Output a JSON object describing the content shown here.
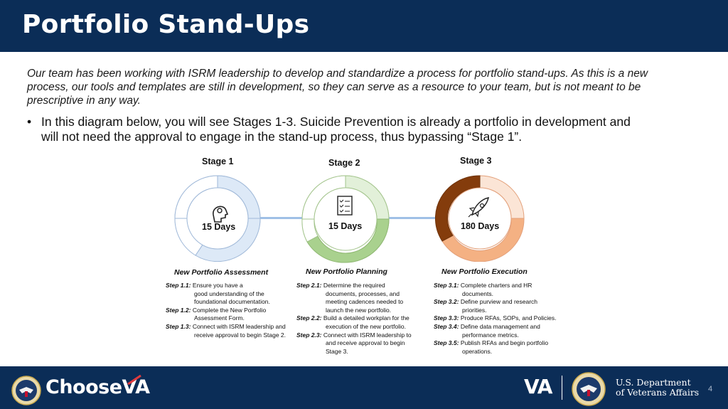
{
  "header": {
    "title": "Portfolio Stand-Ups"
  },
  "intro": "Our team has been working with ISRM leadership to develop and standardize a process for portfolio stand-ups. As this is a new process, our tools and templates are still in development, so they can serve as a resource to your team, but is not meant to be prescriptive in any way.",
  "bullet": "In this diagram below, you will see Stages 1-3. Suicide Prevention is already a portfolio in development and will not need the approval to engage in the stand-up process, thus bypassing “Stage 1”.",
  "stages": [
    {
      "label": "Stage 1",
      "days": "15 Days",
      "phase": "New Portfolio Assessment",
      "icon": "head-lightbulb-icon",
      "color": "#bcd4ee",
      "steps": [
        {
          "key": "Step 1.1:",
          "lines": [
            "Ensure you have a",
            "good understanding of the",
            "foundational documentation."
          ]
        },
        {
          "key": "Step 1.2:",
          "lines": [
            "Complete the New Portfolio",
            "Assessment Form."
          ]
        },
        {
          "key": "Step 1.3:",
          "lines": [
            "Connect with ISRM leadership and",
            "receive approval to begin Stage 2."
          ]
        }
      ]
    },
    {
      "label": "Stage 2",
      "days": "15 Days",
      "phase": "New Portfolio Planning",
      "icon": "checklist-icon",
      "color": "#a9d18e",
      "steps": [
        {
          "key": "Step 2.1:",
          "lines": [
            "Determine the required",
            "documents, processes, and",
            "meeting cadences needed to",
            "launch the new portfolio."
          ]
        },
        {
          "key": "Step 2.2:",
          "lines": [
            "Build a detailed workplan for the",
            "execution of the new portfolio."
          ]
        },
        {
          "key": "Step 2.3:",
          "lines": [
            "Connect with ISRM leadership to",
            "and receive approval to begin",
            "Stage 3."
          ]
        }
      ]
    },
    {
      "label": "Stage 3",
      "days": "180 Days",
      "phase": "New Portfolio Execution",
      "icon": "rocket-icon",
      "color": "#f4b183",
      "steps": [
        {
          "key": "Step 3.1:",
          "lines": [
            "Complete charters and HR",
            "documents."
          ]
        },
        {
          "key": "Step 3.2:",
          "lines": [
            "Define purview and research",
            "priorities."
          ]
        },
        {
          "key": "Step 3.3:",
          "lines": [
            "Produce RFAs, SOPs, and Policies."
          ]
        },
        {
          "key": "Step 3.4:",
          "lines": [
            "Define data management and",
            "performance metrics."
          ]
        },
        {
          "key": "Step 3.5:",
          "lines": [
            "Publish RFAs and begin portfolio",
            "operations."
          ]
        }
      ]
    }
  ],
  "footer": {
    "choose_prefix": "Choose",
    "choose_suffix": "VA",
    "va_logo": "VA",
    "dept_line1": "U.S. Department",
    "dept_line2": "of Veterans Affairs",
    "page_number": "4"
  },
  "colors": {
    "navy": "#0b2d57",
    "stage1": "#bcd4ee",
    "stage2": "#a9d18e",
    "stage3_dark": "#843c0c",
    "stage3_light": "#f4b183",
    "accent_red": "#e03a3e"
  }
}
